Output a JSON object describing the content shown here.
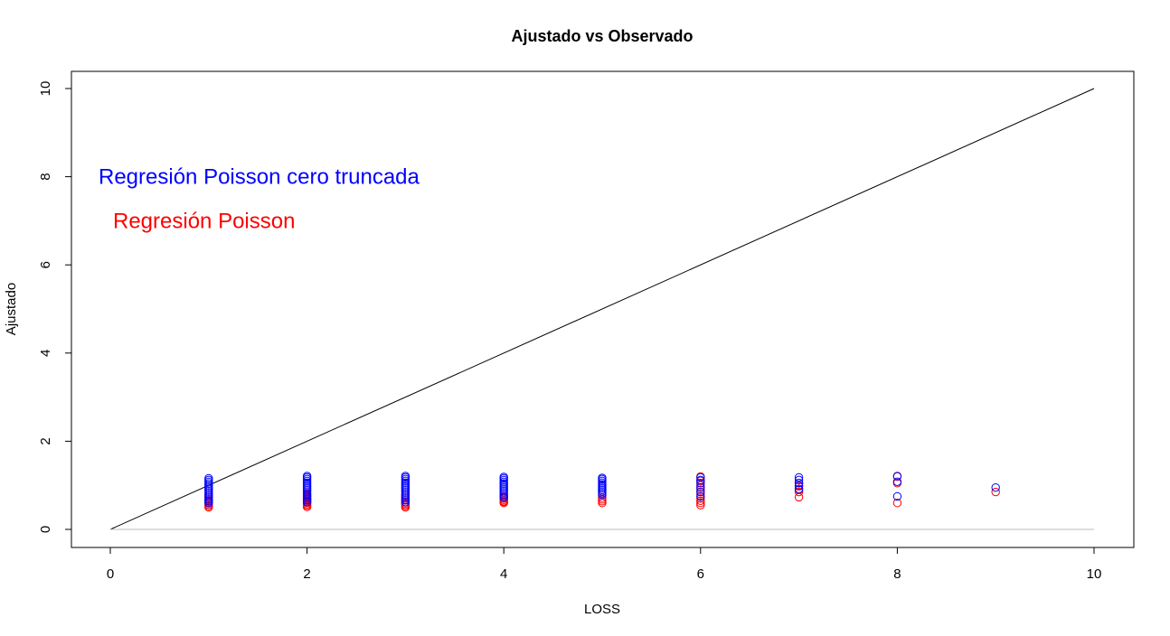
{
  "chart_data": {
    "type": "scatter",
    "title": "Ajustado vs Observado",
    "xlabel": "LOSS",
    "ylabel": "Ajustado",
    "xlim": [
      0,
      10
    ],
    "ylim": [
      0,
      10
    ],
    "x_ticks": [
      "0",
      "2",
      "4",
      "6",
      "8",
      "10"
    ],
    "y_ticks": [
      "0",
      "2",
      "4",
      "6",
      "8",
      "10"
    ],
    "grid": false,
    "legend": "none",
    "reference_lines": [
      {
        "name": "identity",
        "from": [
          0,
          0
        ],
        "to": [
          10,
          10
        ],
        "color": "#000000"
      },
      {
        "name": "baseline",
        "from": [
          0,
          0
        ],
        "to": [
          10,
          0
        ],
        "color": "#bebebe"
      }
    ],
    "annotations": [
      {
        "text": "Regresión Poisson cero truncada",
        "x": 0.1,
        "y": 8,
        "color": "#0000ff"
      },
      {
        "text": "Regresión Poisson",
        "x": 0.1,
        "y": 7,
        "color": "#ff0000"
      }
    ],
    "series": [
      {
        "color": "#ff0000",
        "marker": "open-circle",
        "points": [
          [
            1,
            0.5
          ],
          [
            1,
            0.53
          ],
          [
            1,
            0.56
          ],
          [
            1,
            0.59
          ],
          [
            1,
            0.62
          ],
          [
            1,
            0.65
          ],
          [
            1,
            0.68
          ],
          [
            1,
            0.72
          ],
          [
            1,
            0.76
          ],
          [
            1,
            0.8
          ],
          [
            2,
            0.51
          ],
          [
            2,
            0.54
          ],
          [
            2,
            0.57
          ],
          [
            2,
            0.6
          ],
          [
            2,
            0.64
          ],
          [
            2,
            0.68
          ],
          [
            2,
            0.72
          ],
          [
            2,
            0.76
          ],
          [
            2,
            0.8
          ],
          [
            3,
            0.5
          ],
          [
            3,
            0.53
          ],
          [
            3,
            0.56
          ],
          [
            3,
            0.59
          ],
          [
            3,
            0.62
          ],
          [
            3,
            0.66
          ],
          [
            3,
            0.7
          ],
          [
            3,
            0.74
          ],
          [
            3,
            0.78
          ],
          [
            4,
            0.6
          ],
          [
            4,
            0.62
          ],
          [
            4,
            0.64
          ],
          [
            4,
            0.67
          ],
          [
            4,
            0.7
          ],
          [
            4,
            0.73
          ],
          [
            4,
            0.76
          ],
          [
            5,
            0.6
          ],
          [
            5,
            0.64
          ],
          [
            5,
            0.68
          ],
          [
            5,
            0.72
          ],
          [
            6,
            0.55
          ],
          [
            6,
            0.6
          ],
          [
            6,
            0.65
          ],
          [
            6,
            0.7
          ],
          [
            6,
            0.8
          ],
          [
            6,
            0.9
          ],
          [
            6,
            1.0
          ],
          [
            6,
            1.1
          ],
          [
            6,
            1.2
          ],
          [
            7,
            0.73
          ],
          [
            7,
            0.85
          ],
          [
            7,
            0.92
          ],
          [
            7,
            1.0
          ],
          [
            7,
            1.05
          ],
          [
            8,
            0.6
          ],
          [
            8,
            1.05
          ],
          [
            8,
            1.2
          ],
          [
            9,
            0.85
          ]
        ]
      },
      {
        "color": "#0000ff",
        "marker": "open-circle",
        "points": [
          [
            1,
            0.6
          ],
          [
            1,
            0.64
          ],
          [
            1,
            0.68
          ],
          [
            1,
            0.72
          ],
          [
            1,
            0.76
          ],
          [
            1,
            0.8
          ],
          [
            1,
            0.84
          ],
          [
            1,
            0.88
          ],
          [
            1,
            0.92
          ],
          [
            1,
            0.96
          ],
          [
            1,
            1.0
          ],
          [
            1,
            1.04
          ],
          [
            1,
            1.08
          ],
          [
            1,
            1.12
          ],
          [
            1,
            1.16
          ],
          [
            2,
            0.62
          ],
          [
            2,
            0.66
          ],
          [
            2,
            0.7
          ],
          [
            2,
            0.74
          ],
          [
            2,
            0.78
          ],
          [
            2,
            0.82
          ],
          [
            2,
            0.86
          ],
          [
            2,
            0.9
          ],
          [
            2,
            0.94
          ],
          [
            2,
            0.98
          ],
          [
            2,
            1.02
          ],
          [
            2,
            1.06
          ],
          [
            2,
            1.1
          ],
          [
            2,
            1.14
          ],
          [
            2,
            1.18
          ],
          [
            2,
            1.21
          ],
          [
            3,
            0.62
          ],
          [
            3,
            0.66
          ],
          [
            3,
            0.7
          ],
          [
            3,
            0.74
          ],
          [
            3,
            0.78
          ],
          [
            3,
            0.82
          ],
          [
            3,
            0.86
          ],
          [
            3,
            0.9
          ],
          [
            3,
            0.94
          ],
          [
            3,
            0.98
          ],
          [
            3,
            1.02
          ],
          [
            3,
            1.06
          ],
          [
            3,
            1.1
          ],
          [
            3,
            1.14
          ],
          [
            3,
            1.18
          ],
          [
            3,
            1.21
          ],
          [
            4,
            0.72
          ],
          [
            4,
            0.76
          ],
          [
            4,
            0.8
          ],
          [
            4,
            0.84
          ],
          [
            4,
            0.88
          ],
          [
            4,
            0.92
          ],
          [
            4,
            0.96
          ],
          [
            4,
            1.0
          ],
          [
            4,
            1.04
          ],
          [
            4,
            1.08
          ],
          [
            4,
            1.12
          ],
          [
            4,
            1.16
          ],
          [
            4,
            1.19
          ],
          [
            5,
            0.78
          ],
          [
            5,
            0.82
          ],
          [
            5,
            0.86
          ],
          [
            5,
            0.9
          ],
          [
            5,
            0.94
          ],
          [
            5,
            0.98
          ],
          [
            5,
            1.02
          ],
          [
            5,
            1.06
          ],
          [
            5,
            1.1
          ],
          [
            5,
            1.14
          ],
          [
            5,
            1.17
          ],
          [
            6,
            0.75
          ],
          [
            6,
            0.85
          ],
          [
            6,
            0.95
          ],
          [
            6,
            1.05
          ],
          [
            6,
            1.12
          ],
          [
            6,
            1.18
          ],
          [
            7,
            0.9
          ],
          [
            7,
            0.98
          ],
          [
            7,
            1.05
          ],
          [
            7,
            1.12
          ],
          [
            7,
            1.18
          ],
          [
            8,
            0.75
          ],
          [
            8,
            1.08
          ],
          [
            8,
            1.21
          ],
          [
            9,
            0.95
          ]
        ]
      }
    ]
  }
}
